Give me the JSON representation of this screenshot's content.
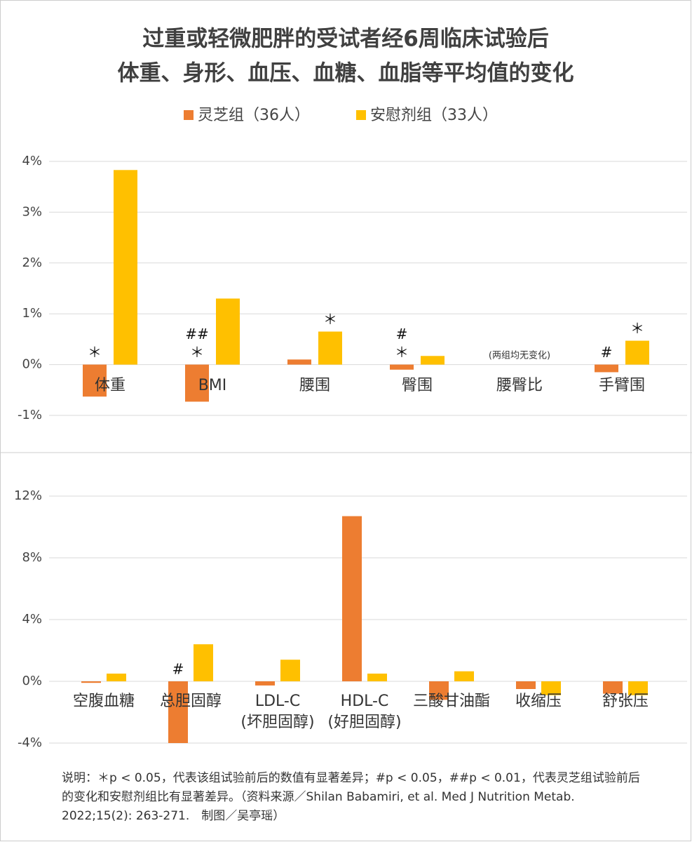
{
  "title_lines": [
    "过重或轻微肥胖的受试者经6周临床试验后",
    "体重、身形、血压、血糖、血脂等平均值的变化"
  ],
  "footnote": "说明：＊p < 0.05，代表该组试验前后的数值有显著差异；#p < 0.05，##p < 0.01，代表灵芝组试验前后的变化和安慰剂组比有显著差异。（资料来源／Shilan Babamiri, et al. Med J Nutrition Metab. 2022;15(2): 263-271.　制图／吴亭瑶）",
  "chart_data": [
    {
      "type": "bar",
      "categories": [
        "体重",
        "BMI",
        "腰围",
        "臀围",
        "腰臀比",
        "手臂围"
      ],
      "category_notes": [
        null,
        null,
        null,
        null,
        "(两组均无变化)",
        null
      ],
      "series": [
        {
          "name": "灵芝组（36人）",
          "color": "#ED7D31",
          "values": [
            -0.63,
            -0.73,
            0.1,
            -0.1,
            0,
            -0.15
          ],
          "notes": [
            [
              "＊"
            ],
            [
              "##",
              "＊"
            ],
            null,
            [
              "#",
              "＊"
            ],
            null,
            [
              "#"
            ]
          ]
        },
        {
          "name": "安慰剂组（33人）",
          "color": "#FFC000",
          "values": [
            3.83,
            1.3,
            0.65,
            0.17,
            0,
            0.47
          ],
          "notes": [
            null,
            null,
            [
              "＊"
            ],
            null,
            null,
            [
              "＊"
            ]
          ]
        }
      ],
      "ylim": [
        -1,
        4
      ],
      "yticks": [
        {
          "value": -1,
          "label": "-1%"
        },
        {
          "value": 0,
          "label": "0%"
        },
        {
          "value": 1,
          "label": "1%"
        },
        {
          "value": 2,
          "label": "2%"
        },
        {
          "value": 3,
          "label": "3%"
        },
        {
          "value": 4,
          "label": "4%"
        }
      ],
      "grid": true
    },
    {
      "type": "bar",
      "categories": [
        "空腹血糖",
        "总胆固醇",
        "LDL-C",
        "HDL-C",
        "三酸甘油酯",
        "收缩压",
        "舒张压"
      ],
      "category_notes": [
        null,
        null,
        "(坏胆固醇)",
        "(好胆固醇)",
        null,
        null,
        null
      ],
      "series": [
        {
          "color": "#ED7D31",
          "values": [
            -0.1,
            -4.0,
            -0.27,
            10.7,
            -1.2,
            -0.5,
            -0.8
          ],
          "notes": [
            null,
            [
              "#"
            ],
            null,
            null,
            null,
            null,
            null
          ]
        },
        {
          "color": "#FFC000",
          "values": [
            0.5,
            2.4,
            1.4,
            0.5,
            0.65,
            -0.9,
            -0.9
          ],
          "notes": [
            null,
            null,
            null,
            null,
            null,
            null,
            null
          ]
        }
      ],
      "ylim": [
        -4,
        12
      ],
      "yticks": [
        {
          "value": -4,
          "label": "-4%"
        },
        {
          "value": 0,
          "label": "0%"
        },
        {
          "value": 4,
          "label": "4%"
        },
        {
          "value": 8,
          "label": "8%"
        },
        {
          "value": 12,
          "label": "12%"
        }
      ],
      "grid": true
    }
  ]
}
